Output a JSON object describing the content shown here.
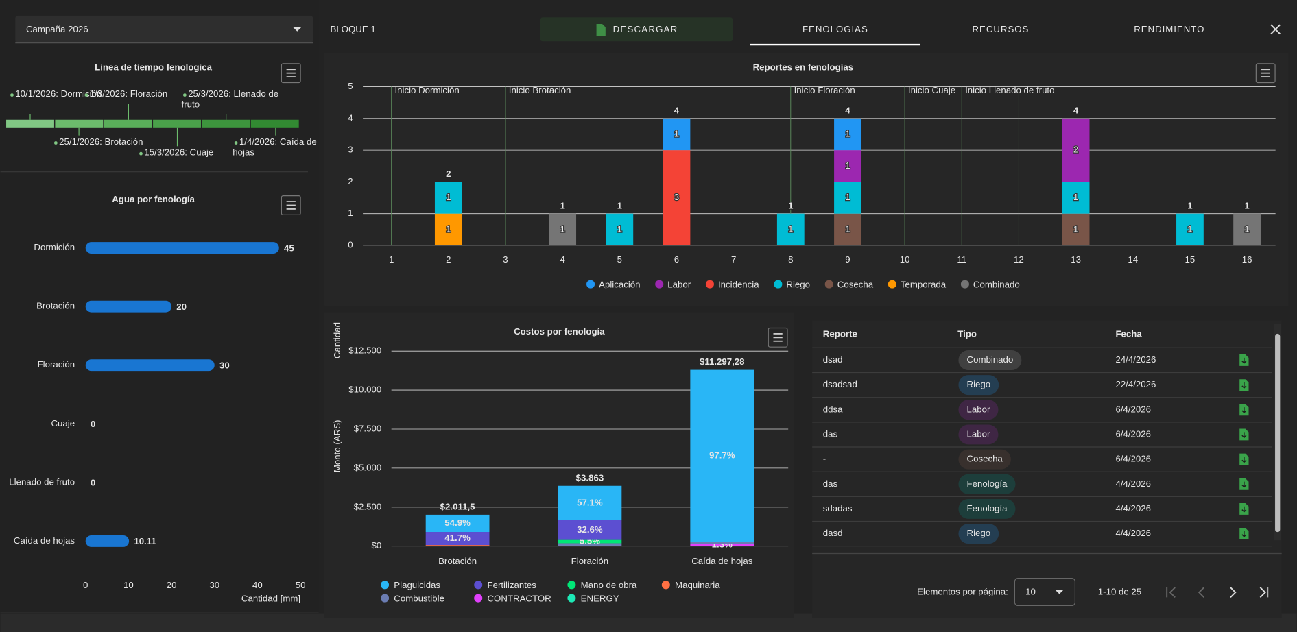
{
  "header": {
    "campaign": "Campaña 2026",
    "title": "BLOQUE 1",
    "download": "DESCARGAR",
    "tabs": [
      "FENOLOGIAS",
      "RECURSOS",
      "RENDIMIENTO"
    ]
  },
  "timeline": {
    "title": "Linea de tiempo fenologica",
    "events": [
      "10/1/2026: Dormición",
      "25/1/2026: Brotación",
      "1/3/2026: Floración",
      "15/3/2026: Cuaje",
      "25/3/2026: Llenado de fruto",
      "1/4/2026: Caída de hojas"
    ]
  },
  "chart_data": [
    {
      "type": "hbar",
      "title": "Agua por fenología",
      "categories": [
        "Dormición",
        "Brotación",
        "Floración",
        "Cuaje",
        "Llenado de fruto",
        "Caída de hojas"
      ],
      "values": [
        45,
        20,
        30,
        0,
        0,
        10.11
      ],
      "color": "#1976d2",
      "xlim": [
        0,
        50
      ],
      "xticks": [
        0,
        10,
        20,
        30,
        40,
        50
      ],
      "x_label": "Cantidad [mm]"
    },
    {
      "type": "stacked_bar",
      "title": "Reportes en fenologías",
      "y_label": "Cantidad",
      "categories": [
        1,
        2,
        3,
        4,
        5,
        6,
        7,
        8,
        9,
        10,
        11,
        12,
        13,
        14,
        15,
        16
      ],
      "series": [
        {
          "name": "Aplicación",
          "color": "#2196f3",
          "values": [
            null,
            null,
            null,
            null,
            null,
            1,
            null,
            null,
            1,
            null,
            null,
            null,
            null,
            null,
            null,
            null
          ]
        },
        {
          "name": "Labor",
          "color": "#9c27b0",
          "values": [
            null,
            null,
            null,
            null,
            null,
            null,
            null,
            null,
            1,
            null,
            null,
            null,
            2,
            null,
            null,
            null
          ]
        },
        {
          "name": "Incidencia",
          "color": "#f44336",
          "values": [
            null,
            null,
            null,
            null,
            null,
            3,
            null,
            null,
            null,
            null,
            null,
            null,
            null,
            null,
            null,
            null
          ]
        },
        {
          "name": "Riego",
          "color": "#00bcd4",
          "values": [
            null,
            1,
            null,
            null,
            1,
            null,
            null,
            1,
            1,
            null,
            null,
            null,
            1,
            null,
            1,
            null
          ]
        },
        {
          "name": "Cosecha",
          "color": "#795548",
          "values": [
            null,
            null,
            null,
            null,
            null,
            null,
            null,
            null,
            1,
            null,
            null,
            null,
            1,
            null,
            null,
            null
          ]
        },
        {
          "name": "Temporada",
          "color": "#ff9800",
          "values": [
            null,
            1,
            null,
            null,
            null,
            null,
            null,
            null,
            null,
            null,
            null,
            null,
            null,
            null,
            null,
            null
          ]
        },
        {
          "name": "Combinado",
          "color": "#757575",
          "values": [
            null,
            null,
            null,
            1,
            null,
            null,
            null,
            null,
            null,
            null,
            null,
            null,
            null,
            null,
            null,
            1
          ]
        }
      ],
      "totals": [
        null,
        2,
        null,
        1,
        1,
        4,
        null,
        1,
        4,
        null,
        null,
        null,
        4,
        null,
        1,
        1
      ],
      "annotations": [
        {
          "x": 1,
          "label": "Inicio Dormición"
        },
        {
          "x": 3,
          "label": "Inicio Brotación"
        },
        {
          "x": 8,
          "label": "Inicio Floración"
        },
        {
          "x": 10,
          "label": "Inicio Cuaje"
        },
        {
          "x": 11,
          "label": "Inicio Llenado de fruto"
        },
        {
          "x": 12,
          "label": null
        }
      ],
      "ylim": [
        0,
        5
      ],
      "yticks": [
        0,
        1,
        2,
        3,
        4,
        5
      ],
      "grid": true
    },
    {
      "type": "stacked_bar",
      "title": "Costos por fenología",
      "y_label": "Monto (ARS)",
      "categories": [
        "Brotación",
        "Floración",
        "Caída de hojas"
      ],
      "series": [
        {
          "name": "Plaguicidas",
          "color": "#29b6f6",
          "values": [
            1104.31,
            2205.77,
            11037.44
          ],
          "share_labels": [
            "54.9%",
            "57.1%",
            "97.7%"
          ]
        },
        {
          "name": "Fertilizantes",
          "color": "#5c4fd1",
          "values": [
            838.8,
            1259.34,
            null
          ],
          "share_labels": [
            "41.7%",
            "32.6%",
            null
          ]
        },
        {
          "name": "Mano de obra",
          "color": "#00e676",
          "values": [
            null,
            212.47,
            null
          ],
          "share_labels": [
            null,
            "5.5%",
            null
          ]
        },
        {
          "name": "Maquinaria",
          "color": "#ff7043",
          "values": [
            68.39,
            null,
            null
          ],
          "share_labels": [
            null,
            null,
            null
          ]
        },
        {
          "name": "Combustible",
          "color": "#6b7db3",
          "values": [
            null,
            185.42,
            112.98
          ],
          "share_labels": [
            null,
            null,
            null
          ]
        },
        {
          "name": "CONTRACTOR",
          "color": "#e040fb",
          "values": [
            null,
            null,
            146.86
          ],
          "share_labels": [
            null,
            null,
            "1.3%"
          ]
        },
        {
          "name": "ENERGY",
          "color": "#1de9b6",
          "values": [
            null,
            null,
            null
          ],
          "share_labels": [
            null,
            null,
            null
          ]
        }
      ],
      "totals": [
        2011.5,
        3863,
        11297.28
      ],
      "total_labels": [
        "$2.011,5",
        "$3.863",
        "$11.297,28"
      ],
      "ylim": [
        0,
        12500
      ],
      "yticks": [
        {
          "value": 0,
          "label": "$0"
        },
        {
          "value": 2500,
          "label": "$2.500"
        },
        {
          "value": 5000,
          "label": "$5.000"
        },
        {
          "value": 7500,
          "label": "$7.500"
        },
        {
          "value": 10000,
          "label": "$10.000"
        },
        {
          "value": 12500,
          "label": "$12.500"
        }
      ],
      "grid": true
    }
  ],
  "table": {
    "headers": [
      "Reporte",
      "Tipo",
      "Fecha"
    ],
    "rows": [
      {
        "reporte": "dsad",
        "tipo": "Combinado",
        "fecha": "24/4/2026",
        "color": "#9e9e9e"
      },
      {
        "reporte": "dsadsad",
        "tipo": "Riego",
        "fecha": "22/4/2026",
        "color": "#2196f3"
      },
      {
        "reporte": "ddsa",
        "tipo": "Labor",
        "fecha": "6/4/2026",
        "color": "#9c27b0"
      },
      {
        "reporte": "das",
        "tipo": "Labor",
        "fecha": "6/4/2026",
        "color": "#9c27b0"
      },
      {
        "reporte": "-",
        "tipo": "Cosecha",
        "fecha": "6/4/2026",
        "color": "#795548"
      },
      {
        "reporte": "das",
        "tipo": "Fenología",
        "fecha": "4/4/2026",
        "color": "#009688"
      },
      {
        "reporte": "sdadas",
        "tipo": "Fenología",
        "fecha": "4/4/2026",
        "color": "#009688"
      },
      {
        "reporte": "dasd",
        "tipo": "Riego",
        "fecha": "4/4/2026",
        "color": "#2196f3"
      }
    ]
  },
  "pagination": {
    "label": "Elementos por página:",
    "page_size": 10,
    "range": "1-10 de 25"
  }
}
